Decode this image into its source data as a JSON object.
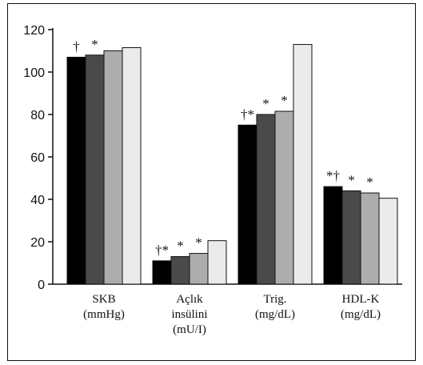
{
  "chart_data": {
    "type": "bar",
    "title": "",
    "xlabel": "",
    "ylabel": "",
    "ylim": [
      0,
      120
    ],
    "yticks": [
      "0",
      "20",
      "40",
      "60",
      "80",
      "100",
      "120"
    ],
    "grid": false,
    "legend": "none",
    "categories": [
      {
        "label_lines": [
          "SKB",
          "(mmHg)"
        ]
      },
      {
        "label_lines": [
          "Açlık",
          "insülini",
          "(mU/I)"
        ]
      },
      {
        "label_lines": [
          "Trig.",
          "(mg/dL)"
        ]
      },
      {
        "label_lines": [
          "HDL-K",
          "(mg/dL)"
        ]
      }
    ],
    "series": [
      {
        "color": "#000000",
        "values": [
          107,
          11,
          75,
          46
        ]
      },
      {
        "color": "#4a4a4a",
        "values": [
          108,
          13,
          80,
          44
        ]
      },
      {
        "color": "#adadad",
        "values": [
          110,
          14.5,
          81.5,
          43
        ]
      },
      {
        "color": "#ebebeb",
        "values": [
          111.5,
          20.5,
          113,
          40.5
        ]
      }
    ],
    "annotations": [
      [
        [
          "†",
          ""
        ],
        [
          "*",
          ""
        ],
        [
          "",
          ""
        ],
        [
          "",
          ""
        ]
      ],
      [
        [
          "†*",
          ""
        ],
        [
          "*",
          ""
        ],
        [
          "*",
          ""
        ],
        [
          "",
          ""
        ]
      ],
      [
        [
          "†*",
          ""
        ],
        [
          "*",
          ""
        ],
        [
          "*",
          ""
        ],
        [
          "",
          ""
        ]
      ],
      [
        [
          "*†",
          ""
        ],
        [
          "*",
          ""
        ],
        [
          "*",
          ""
        ],
        [
          "",
          ""
        ]
      ]
    ]
  }
}
